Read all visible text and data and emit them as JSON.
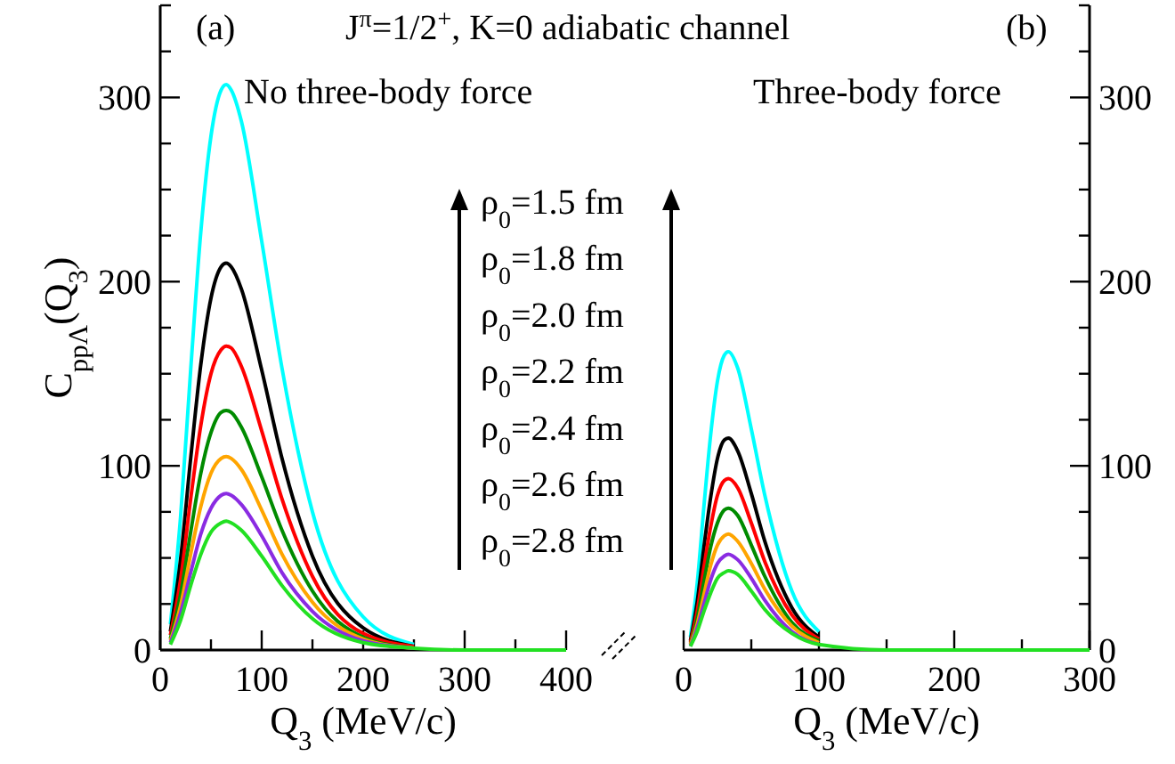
{
  "chart_data": [
    {
      "type": "line",
      "xlabel": "Q$_{3}$ (MeV/c)",
      "ylabel": "C$_{ppΛ}$(Q$_{3}$)",
      "xlim": [
        0,
        400
      ],
      "xticks": [
        0,
        {
          "value": 50,
          "label": null
        },
        100,
        {
          "value": 150,
          "label": null
        },
        200,
        {
          "value": 250,
          "label": null
        },
        300,
        {
          "value": 350,
          "label": null
        },
        400
      ],
      "ylim": [
        0,
        350
      ],
      "yticks": [
        0,
        {
          "value": 25,
          "label": null
        },
        {
          "value": 50,
          "label": null
        },
        {
          "value": 75,
          "label": null
        },
        100,
        {
          "value": 125,
          "label": null
        },
        {
          "value": 150,
          "label": null
        },
        {
          "value": 175,
          "label": null
        },
        200,
        {
          "value": 225,
          "label": null
        },
        {
          "value": 250,
          "label": null
        },
        {
          "value": 275,
          "label": null
        },
        300,
        {
          "value": 325,
          "label": null
        },
        {
          "value": 350,
          "label": null
        }
      ],
      "grid": false,
      "marker": "none",
      "line_style": "solid",
      "x": [
        10,
        20,
        30,
        40,
        50,
        60,
        65,
        70,
        80,
        100,
        120,
        150,
        200,
        250,
        300,
        400
      ],
      "annotations": [
        "(a)",
        "J$^{π}$=1/2$^{+}$, K=0 adiabatic channel",
        "No three-body force",
        "ρ$_{0}$=1.5 fm",
        "ρ$_{0}$=1.8 fm",
        "ρ$_{0}$=2.0 fm",
        "ρ$_{0}$=2.2 fm",
        "ρ$_{0}$=2.4 fm",
        "ρ$_{0}$=2.6 fm",
        "ρ$_{0}$=2.8 fm"
      ],
      "series": [
        {
          "color": "#00ffff",
          "values": [
            14,
            72,
            152,
            227,
            279,
            304,
            307,
            304,
            287,
            222,
            153,
            75,
            18,
            3,
            null,
            null
          ]
        },
        {
          "color": "#000000",
          "values": [
            10,
            49,
            104,
            155,
            191,
            208,
            210,
            208,
            196,
            152,
            104,
            51,
            12,
            2,
            null,
            null
          ]
        },
        {
          "color": "#ff0000",
          "values": [
            8,
            38,
            82,
            122,
            150,
            163,
            165,
            164,
            154,
            119,
            82,
            40,
            9,
            2,
            null,
            null
          ]
        },
        {
          "color": "#008b00",
          "values": [
            6,
            30,
            64,
            96,
            118,
            129,
            130,
            129,
            121,
            94,
            65,
            32,
            7,
            1,
            null,
            null
          ]
        },
        {
          "color": "#ffa500",
          "values": [
            5,
            24,
            52,
            78,
            96,
            104,
            105,
            104,
            98,
            76,
            52,
            26,
            6,
            1,
            null,
            null
          ]
        },
        {
          "color": "#8a2be2",
          "values": [
            4,
            20,
            42,
            63,
            77,
            84,
            85,
            84,
            79,
            62,
            42,
            21,
            5,
            1,
            null,
            null
          ]
        },
        {
          "color": "#22e022",
          "values": [
            3,
            16,
            35,
            52,
            64,
            69,
            70,
            69,
            65,
            51,
            35,
            17,
            4,
            1,
            0,
            0
          ]
        }
      ]
    },
    {
      "type": "line",
      "xlabel": "Q$_{3}$ (MeV/c)",
      "xlim": [
        0,
        300
      ],
      "xticks": [
        0,
        {
          "value": 50,
          "label": null
        },
        100,
        {
          "value": 150,
          "label": null
        },
        200,
        {
          "value": 250,
          "label": null
        },
        300
      ],
      "y2lim": [
        0,
        350
      ],
      "y2ticks": [
        0,
        {
          "value": 25,
          "label": null
        },
        {
          "value": 50,
          "label": null
        },
        {
          "value": 75,
          "label": null
        },
        100,
        {
          "value": 125,
          "label": null
        },
        {
          "value": 150,
          "label": null
        },
        {
          "value": 175,
          "label": null
        },
        200,
        {
          "value": 225,
          "label": null
        },
        {
          "value": 250,
          "label": null
        },
        {
          "value": 275,
          "label": null
        },
        300,
        {
          "value": 325,
          "label": null
        },
        {
          "value": 350,
          "label": null
        }
      ],
      "grid": false,
      "marker": "none",
      "line_style": "solid",
      "x": [
        5,
        10,
        15,
        20,
        25,
        30,
        33,
        40,
        50,
        60,
        80,
        100,
        150,
        200,
        300
      ],
      "annotations": [
        "(b)",
        "Three-body force"
      ],
      "series": [
        {
          "axis": "y2",
          "color": "#00ffff",
          "values": [
            7,
            36,
            78,
            117,
            146,
            160,
            162,
            153,
            120,
            84,
            32,
            10,
            null,
            null,
            null
          ]
        },
        {
          "axis": "y2",
          "color": "#000000",
          "values": [
            5,
            26,
            56,
            83,
            104,
            114,
            115,
            108,
            85,
            59,
            23,
            7,
            null,
            null,
            null
          ]
        },
        {
          "axis": "y2",
          "color": "#ff0000",
          "values": [
            4,
            21,
            45,
            67,
            84,
            92,
            93,
            88,
            69,
            48,
            19,
            6,
            null,
            null,
            null
          ]
        },
        {
          "axis": "y2",
          "color": "#008b00",
          "values": [
            3,
            17,
            37,
            56,
            69,
            76,
            77,
            73,
            57,
            40,
            15,
            5,
            null,
            null,
            null
          ]
        },
        {
          "axis": "y2",
          "color": "#ffa500",
          "values": [
            3,
            14,
            30,
            46,
            57,
            62,
            63,
            59,
            47,
            33,
            13,
            4,
            null,
            null,
            null
          ]
        },
        {
          "axis": "y2",
          "color": "#8a2be2",
          "values": [
            2,
            12,
            25,
            38,
            47,
            51,
            52,
            49,
            39,
            27,
            10,
            3,
            null,
            null,
            null
          ]
        },
        {
          "axis": "y2",
          "color": "#22e022",
          "values": [
            2,
            10,
            21,
            31,
            39,
            42,
            43,
            41,
            32,
            22,
            9,
            3,
            0,
            0,
            0
          ]
        }
      ]
    }
  ]
}
